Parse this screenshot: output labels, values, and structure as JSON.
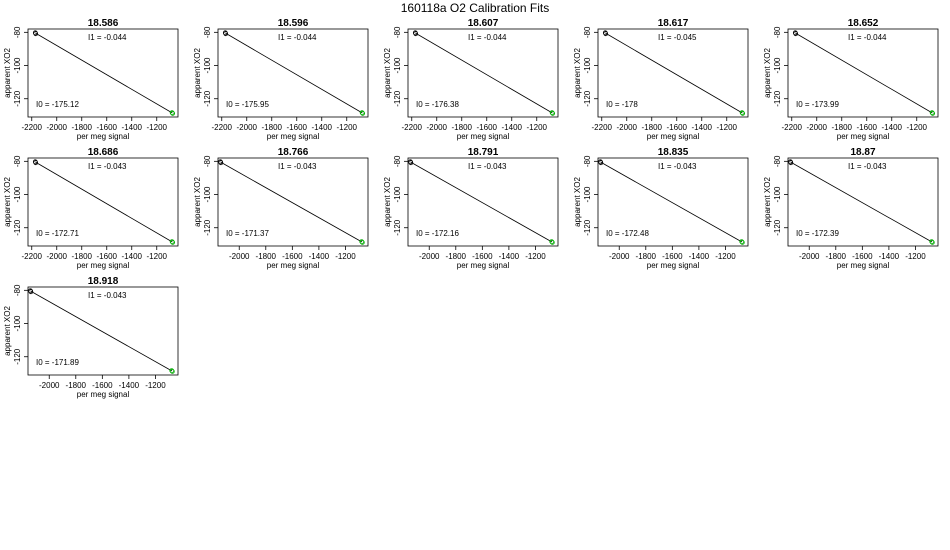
{
  "title": "160118a   O2 Calibration Fits",
  "colors": {
    "fit_line": "#000000",
    "low_points": "#000000",
    "high_points": "#00aa00",
    "frame": "#000000"
  },
  "chart_data": [
    {
      "type": "scatter",
      "title": "18.586",
      "xlabel": "per meg signal",
      "ylabel": "apparent XO2",
      "xlim": [
        -2230,
        -1030
      ],
      "ylim": [
        -131,
        -78
      ],
      "xticks": [
        "-2200",
        "-2000",
        "-1800",
        "-1600",
        "-1400",
        "-1200"
      ],
      "yticks": [
        "-80",
        "-100",
        "-120"
      ],
      "I1_label": "I1 =  -0.044",
      "I0_label": "I0 =  -175.12",
      "points_low": [
        [
          -2170,
          -80.5
        ],
        [
          -2168,
          -80.9
        ],
        [
          -2172,
          -80.2
        ]
      ],
      "points_high": [
        [
          -1075,
          -128.6
        ],
        [
          -1072,
          -128.9
        ],
        [
          -1078,
          -128.3
        ]
      ]
    },
    {
      "type": "scatter",
      "title": "18.596",
      "xlabel": "per meg signal",
      "ylabel": "apparent XO2",
      "xlim": [
        -2230,
        -1030
      ],
      "ylim": [
        -131,
        -78
      ],
      "xticks": [
        "-2200",
        "-2000",
        "-1800",
        "-1600",
        "-1400",
        "-1200"
      ],
      "yticks": [
        "-80",
        "-100",
        "-120"
      ],
      "I1_label": "I1 =  -0.044",
      "I0_label": "I0 =  -175.95",
      "points_low": [
        [
          -2170,
          -80.5
        ],
        [
          -2168,
          -80.9
        ],
        [
          -2172,
          -80.2
        ]
      ],
      "points_high": [
        [
          -1075,
          -128.6
        ],
        [
          -1072,
          -128.9
        ],
        [
          -1078,
          -128.3
        ]
      ]
    },
    {
      "type": "scatter",
      "title": "18.607",
      "xlabel": "per meg signal",
      "ylabel": "apparent XO2",
      "xlim": [
        -2230,
        -1030
      ],
      "ylim": [
        -131,
        -78
      ],
      "xticks": [
        "-2200",
        "-2000",
        "-1800",
        "-1600",
        "-1400",
        "-1200"
      ],
      "yticks": [
        "-80",
        "-100",
        "-120"
      ],
      "I1_label": "I1 =  -0.044",
      "I0_label": "I0 =  -176.38",
      "points_low": [
        [
          -2170,
          -80.5
        ],
        [
          -2168,
          -80.9
        ],
        [
          -2172,
          -80.2
        ]
      ],
      "points_high": [
        [
          -1075,
          -128.6
        ],
        [
          -1072,
          -128.9
        ],
        [
          -1078,
          -128.3
        ]
      ]
    },
    {
      "type": "scatter",
      "title": "18.617",
      "xlabel": "per meg signal",
      "ylabel": "apparent XO2",
      "xlim": [
        -2230,
        -1030
      ],
      "ylim": [
        -131,
        -78
      ],
      "xticks": [
        "-2200",
        "-2000",
        "-1800",
        "-1600",
        "-1400",
        "-1200"
      ],
      "yticks": [
        "-80",
        "-100",
        "-120"
      ],
      "I1_label": "I1 =  -0.045",
      "I0_label": "I0 =  -178",
      "points_low": [
        [
          -2170,
          -80.5
        ],
        [
          -2168,
          -80.9
        ],
        [
          -2172,
          -80.2
        ]
      ],
      "points_high": [
        [
          -1075,
          -128.6
        ],
        [
          -1072,
          -128.9
        ],
        [
          -1078,
          -128.3
        ]
      ]
    },
    {
      "type": "scatter",
      "title": "18.652",
      "xlabel": "per meg signal",
      "ylabel": "apparent XO2",
      "xlim": [
        -2230,
        -1030
      ],
      "ylim": [
        -131,
        -78
      ],
      "xticks": [
        "-2200",
        "-2000",
        "-1800",
        "-1600",
        "-1400",
        "-1200"
      ],
      "yticks": [
        "-80",
        "-100",
        "-120"
      ],
      "I1_label": "I1 =  -0.044",
      "I0_label": "I0 =  -173.99",
      "points_low": [
        [
          -2170,
          -80.5
        ],
        [
          -2168,
          -80.9
        ],
        [
          -2172,
          -80.2
        ]
      ],
      "points_high": [
        [
          -1075,
          -128.6
        ],
        [
          -1072,
          -128.9
        ],
        [
          -1078,
          -128.3
        ]
      ]
    },
    {
      "type": "scatter",
      "title": "18.686",
      "xlabel": "per meg signal",
      "ylabel": "apparent XO2",
      "xlim": [
        -2230,
        -1030
      ],
      "ylim": [
        -131,
        -78
      ],
      "xticks": [
        "-2200",
        "-2000",
        "-1800",
        "-1600",
        "-1400",
        "-1200"
      ],
      "yticks": [
        "-80",
        "-100",
        "-120"
      ],
      "I1_label": "I1 =  -0.043",
      "I0_label": "I0 =  -172.71",
      "points_low": [
        [
          -2170,
          -80.5
        ],
        [
          -2168,
          -80.9
        ],
        [
          -2172,
          -80.2
        ]
      ],
      "points_high": [
        [
          -1075,
          -128.6
        ],
        [
          -1072,
          -128.9
        ],
        [
          -1078,
          -128.3
        ]
      ]
    },
    {
      "type": "scatter",
      "title": "18.766",
      "xlabel": "per meg signal",
      "ylabel": "apparent XO2",
      "xlim": [
        -2160,
        -1030
      ],
      "ylim": [
        -131,
        -78
      ],
      "xticks": [
        "-2000",
        "-1800",
        "-1600",
        "-1400",
        "-1200"
      ],
      "yticks": [
        "-80",
        "-100",
        "-120"
      ],
      "I1_label": "I1 =  -0.043",
      "I0_label": "I0 =  -171.37",
      "points_low": [
        [
          -2140,
          -80.5
        ],
        [
          -2138,
          -80.9
        ],
        [
          -2142,
          -80.2
        ]
      ],
      "points_high": [
        [
          -1075,
          -128.6
        ],
        [
          -1072,
          -128.9
        ],
        [
          -1078,
          -128.3
        ]
      ]
    },
    {
      "type": "scatter",
      "title": "18.791",
      "xlabel": "per meg signal",
      "ylabel": "apparent XO2",
      "xlim": [
        -2160,
        -1030
      ],
      "ylim": [
        -131,
        -78
      ],
      "xticks": [
        "-2000",
        "-1800",
        "-1600",
        "-1400",
        "-1200"
      ],
      "yticks": [
        "-80",
        "-100",
        "-120"
      ],
      "I1_label": "I1 =  -0.043",
      "I0_label": "I0 =  -172.16",
      "points_low": [
        [
          -2140,
          -80.5
        ],
        [
          -2138,
          -80.9
        ],
        [
          -2142,
          -80.2
        ]
      ],
      "points_high": [
        [
          -1075,
          -128.6
        ],
        [
          -1072,
          -128.9
        ],
        [
          -1078,
          -128.3
        ]
      ]
    },
    {
      "type": "scatter",
      "title": "18.835",
      "xlabel": "per meg signal",
      "ylabel": "apparent XO2",
      "xlim": [
        -2160,
        -1030
      ],
      "ylim": [
        -131,
        -78
      ],
      "xticks": [
        "-2000",
        "-1800",
        "-1600",
        "-1400",
        "-1200"
      ],
      "yticks": [
        "-80",
        "-100",
        "-120"
      ],
      "I1_label": "I1 =  -0.043",
      "I0_label": "I0 =  -172.48",
      "points_low": [
        [
          -2140,
          -80.5
        ],
        [
          -2138,
          -80.9
        ],
        [
          -2142,
          -80.2
        ]
      ],
      "points_high": [
        [
          -1075,
          -128.6
        ],
        [
          -1072,
          -128.9
        ],
        [
          -1078,
          -128.3
        ]
      ]
    },
    {
      "type": "scatter",
      "title": "18.87",
      "xlabel": "per meg signal",
      "ylabel": "apparent XO2",
      "xlim": [
        -2160,
        -1030
      ],
      "ylim": [
        -131,
        -78
      ],
      "xticks": [
        "-2000",
        "-1800",
        "-1600",
        "-1400",
        "-1200"
      ],
      "yticks": [
        "-80",
        "-100",
        "-120"
      ],
      "I1_label": "I1 =  -0.043",
      "I0_label": "I0 =  -172.39",
      "points_low": [
        [
          -2140,
          -80.5
        ],
        [
          -2138,
          -80.9
        ],
        [
          -2142,
          -80.2
        ]
      ],
      "points_high": [
        [
          -1075,
          -128.6
        ],
        [
          -1072,
          -128.9
        ],
        [
          -1078,
          -128.3
        ]
      ]
    },
    {
      "type": "scatter",
      "title": "18.918",
      "xlabel": "per meg signal",
      "ylabel": "apparent XO2",
      "xlim": [
        -2160,
        -1030
      ],
      "ylim": [
        -131,
        -78
      ],
      "xticks": [
        "-2000",
        "-1800",
        "-1600",
        "-1400",
        "-1200"
      ],
      "yticks": [
        "-80",
        "-100",
        "-120"
      ],
      "I1_label": "I1 =  -0.043",
      "I0_label": "I0 =  -171.89",
      "points_low": [
        [
          -2140,
          -80.5
        ],
        [
          -2138,
          -80.9
        ],
        [
          -2142,
          -80.2
        ]
      ],
      "points_high": [
        [
          -1075,
          -128.6
        ],
        [
          -1072,
          -128.9
        ],
        [
          -1078,
          -128.3
        ]
      ]
    }
  ]
}
